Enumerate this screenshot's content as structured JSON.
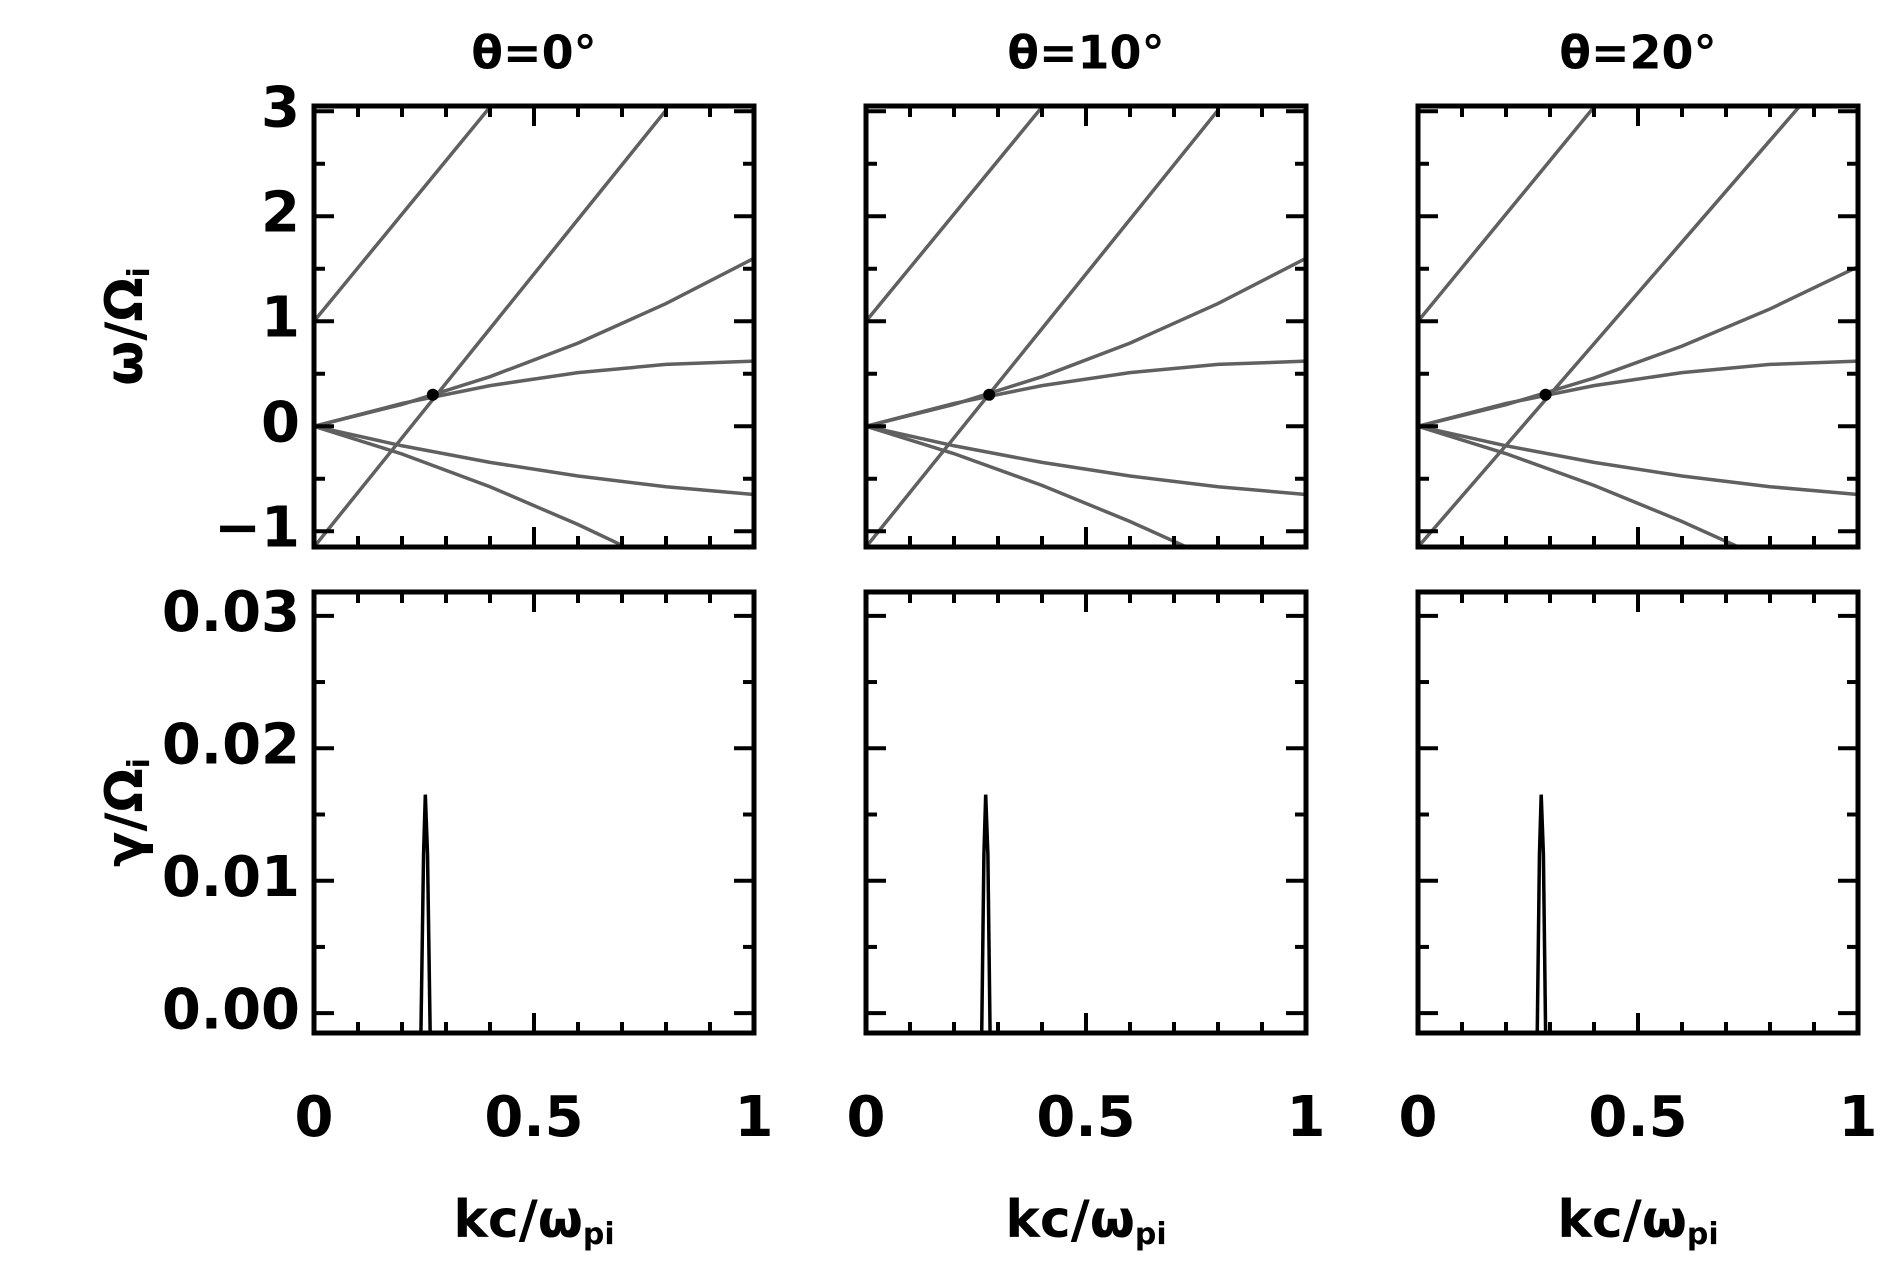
{
  "chart_data": [
    {
      "type": "line",
      "title": "θ=0°",
      "ylabel": {
        "main": "ω/Ω",
        "sub": "i"
      },
      "xlim": [
        0,
        1
      ],
      "ylim": [
        -1.15,
        3.05
      ],
      "xticks": [
        0,
        0.5,
        1
      ],
      "yticks": [
        {
          "value": -1,
          "label": "−1"
        },
        0,
        1,
        2,
        3
      ],
      "xminorticks": [
        0.1,
        0.2,
        0.3,
        0.4,
        0.6,
        0.7,
        0.8,
        0.9
      ],
      "yminorticks": [
        -0.5,
        0.5,
        1.5,
        2.5
      ],
      "tick_labels": {
        "x": false,
        "y": true
      },
      "series": [
        {
          "color": "#606060",
          "x": [
            0,
            0.1,
            0.2,
            0.3,
            0.4
          ],
          "values": [
            1,
            1.51,
            2.02,
            2.53,
            3.04
          ]
        },
        {
          "color": "#606060",
          "x": [
            0,
            0.2,
            0.4,
            0.6,
            0.8
          ],
          "values": [
            -1.15,
            -0.11,
            0.93,
            1.97,
            3.01
          ]
        },
        {
          "color": "#606060",
          "x": [
            0,
            0.2,
            0.4,
            0.6,
            0.8,
            1
          ],
          "values": [
            0,
            0.208,
            0.472,
            0.792,
            1.168,
            1.6
          ]
        },
        {
          "color": "#606060",
          "x": [
            0,
            0.2,
            0.4,
            0.6,
            0.8,
            1
          ],
          "values": [
            0,
            0.217,
            0.387,
            0.511,
            0.589,
            0.62
          ]
        },
        {
          "color": "#606060",
          "x": [
            0,
            0.2,
            0.4,
            0.6,
            0.8,
            1
          ],
          "values": [
            0,
            -0.186,
            -0.344,
            -0.474,
            -0.576,
            -0.65
          ]
        },
        {
          "color": "#606060",
          "x": [
            0,
            0.2,
            0.4,
            0.6,
            0.7
          ],
          "values": [
            0,
            -0.264,
            -0.576,
            -0.936,
            -1.134
          ]
        },
        {
          "color": "#000000",
          "marker": true,
          "x": [
            0.27
          ],
          "values": [
            0.3
          ]
        }
      ]
    },
    {
      "type": "line",
      "title": "θ=10°",
      "xlim": [
        0,
        1
      ],
      "ylim": [
        -1.15,
        3.05
      ],
      "xticks": [
        0,
        0.5,
        1
      ],
      "yticks": [
        {
          "value": -1,
          "label": "−1"
        },
        0,
        1,
        2,
        3
      ],
      "xminorticks": [
        0.1,
        0.2,
        0.3,
        0.4,
        0.6,
        0.7,
        0.8,
        0.9
      ],
      "yminorticks": [
        -0.5,
        0.5,
        1.5,
        2.5
      ],
      "tick_labels": {
        "x": false,
        "y": false
      },
      "series": [
        {
          "color": "#606060",
          "x": [
            0,
            0.1,
            0.2,
            0.3,
            0.4
          ],
          "values": [
            1,
            1.51,
            2.02,
            2.53,
            3.04
          ]
        },
        {
          "color": "#606060",
          "x": [
            0,
            0.2,
            0.4,
            0.6,
            0.8
          ],
          "values": [
            -1.15,
            -0.11,
            0.93,
            1.97,
            3.01
          ]
        },
        {
          "color": "#606060",
          "x": [
            0,
            0.2,
            0.4,
            0.6,
            0.8,
            1
          ],
          "values": [
            0,
            0.208,
            0.472,
            0.792,
            1.168,
            1.6
          ]
        },
        {
          "color": "#606060",
          "x": [
            0,
            0.2,
            0.4,
            0.6,
            0.8,
            1
          ],
          "values": [
            0,
            0.217,
            0.387,
            0.511,
            0.589,
            0.62
          ]
        },
        {
          "color": "#606060",
          "x": [
            0,
            0.2,
            0.4,
            0.6,
            0.8,
            1
          ],
          "values": [
            0,
            -0.186,
            -0.344,
            -0.474,
            -0.576,
            -0.65
          ]
        },
        {
          "color": "#606060",
          "x": [
            0,
            0.2,
            0.4,
            0.6,
            0.73
          ],
          "values": [
            0,
            -0.261,
            -0.563,
            -0.907,
            -1.153
          ]
        },
        {
          "color": "#000000",
          "marker": true,
          "x": [
            0.28
          ],
          "values": [
            0.3
          ]
        }
      ]
    },
    {
      "type": "line",
      "title": "θ=20°",
      "xlim": [
        0,
        1
      ],
      "ylim": [
        -1.15,
        3.05
      ],
      "xticks": [
        0,
        0.5,
        1
      ],
      "yticks": [
        {
          "value": -1,
          "label": "−1"
        },
        0,
        1,
        2,
        3
      ],
      "xminorticks": [
        0.1,
        0.2,
        0.3,
        0.4,
        0.6,
        0.7,
        0.8,
        0.9
      ],
      "yminorticks": [
        -0.5,
        0.5,
        1.5,
        2.5
      ],
      "tick_labels": {
        "x": false,
        "y": false
      },
      "series": [
        {
          "color": "#606060",
          "x": [
            0,
            0.1,
            0.2,
            0.3,
            0.4
          ],
          "values": [
            1,
            1.51,
            2.02,
            2.53,
            3.04
          ]
        },
        {
          "color": "#606060",
          "x": [
            0,
            0.2,
            0.4,
            0.6,
            0.8,
            0.87
          ],
          "values": [
            -1.15,
            -0.182,
            0.786,
            1.754,
            2.722,
            3.061
          ]
        },
        {
          "color": "#606060",
          "x": [
            0,
            0.2,
            0.4,
            0.6,
            0.8,
            1
          ],
          "values": [
            0,
            0.205,
            0.459,
            0.763,
            1.117,
            1.52
          ]
        },
        {
          "color": "#606060",
          "x": [
            0,
            0.2,
            0.4,
            0.6,
            0.8,
            1
          ],
          "values": [
            0,
            0.217,
            0.387,
            0.511,
            0.589,
            0.62
          ]
        },
        {
          "color": "#606060",
          "x": [
            0,
            0.2,
            0.4,
            0.6,
            0.8,
            1
          ],
          "values": [
            0,
            -0.186,
            -0.344,
            -0.474,
            -0.576,
            -0.65
          ]
        },
        {
          "color": "#606060",
          "x": [
            0,
            0.2,
            0.4,
            0.6,
            0.73
          ],
          "values": [
            0,
            -0.261,
            -0.563,
            -0.907,
            -1.153
          ]
        },
        {
          "color": "#000000",
          "marker": true,
          "x": [
            0.29
          ],
          "values": [
            0.3
          ]
        }
      ]
    },
    {
      "type": "line",
      "ylabel": {
        "main": "γ/Ω",
        "sub": "i"
      },
      "xlabel": {
        "main": "kc/ω",
        "sub": "pi"
      },
      "xlim": [
        0,
        1
      ],
      "ylim": [
        -0.0015,
        0.0318
      ],
      "xticks": [
        0,
        0.5,
        1
      ],
      "yticks": [
        {
          "value": 0,
          "label": "0.00"
        },
        0.01,
        0.02,
        0.03
      ],
      "xminorticks": [
        0.1,
        0.2,
        0.3,
        0.4,
        0.6,
        0.7,
        0.8,
        0.9
      ],
      "yminorticks": [
        0.005,
        0.015,
        0.025
      ],
      "tick_labels": {
        "x": true,
        "y": true
      },
      "series": [
        {
          "color": "#000000",
          "x": [
            0.243,
            0.249,
            0.253,
            0.258,
            0.264
          ],
          "values": [
            -0.0015,
            0.012,
            0.0165,
            0.012,
            -0.0015
          ]
        }
      ]
    },
    {
      "type": "line",
      "xlabel": {
        "main": "kc/ω",
        "sub": "pi"
      },
      "xlim": [
        0,
        1
      ],
      "ylim": [
        -0.0015,
        0.0318
      ],
      "xticks": [
        0,
        0.5,
        1
      ],
      "yticks": [
        {
          "value": 0,
          "label": "0.00"
        },
        0.01,
        0.02,
        0.03
      ],
      "xminorticks": [
        0.1,
        0.2,
        0.3,
        0.4,
        0.6,
        0.7,
        0.8,
        0.9
      ],
      "yminorticks": [
        0.005,
        0.015,
        0.025
      ],
      "tick_labels": {
        "x": true,
        "y": false
      },
      "series": [
        {
          "color": "#000000",
          "x": [
            0.263,
            0.268,
            0.272,
            0.277,
            0.282
          ],
          "values": [
            -0.0015,
            0.012,
            0.0165,
            0.012,
            -0.0015
          ]
        }
      ]
    },
    {
      "type": "line",
      "xlabel": {
        "main": "kc/ω",
        "sub": "pi"
      },
      "xlim": [
        0,
        1
      ],
      "ylim": [
        -0.0015,
        0.0318
      ],
      "xticks": [
        0,
        0.5,
        1
      ],
      "yticks": [
        {
          "value": 0,
          "label": "0.00"
        },
        0.01,
        0.02,
        0.03
      ],
      "xminorticks": [
        0.1,
        0.2,
        0.3,
        0.4,
        0.6,
        0.7,
        0.8,
        0.9
      ],
      "yminorticks": [
        0.005,
        0.015,
        0.025
      ],
      "tick_labels": {
        "x": true,
        "y": false
      },
      "series": [
        {
          "color": "#000000",
          "x": [
            0.271,
            0.276,
            0.28,
            0.285,
            0.29
          ],
          "values": [
            -0.0015,
            0.012,
            0.0165,
            0.012,
            -0.0015
          ]
        }
      ]
    }
  ]
}
